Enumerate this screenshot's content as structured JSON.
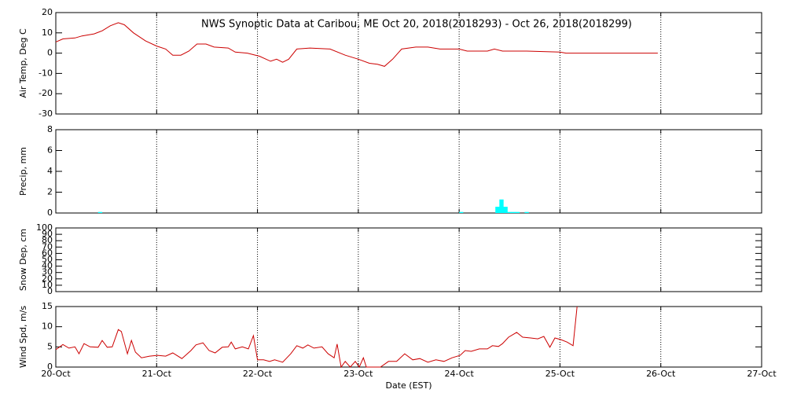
{
  "chart_data": [
    {
      "type": "line",
      "title": "NWS Synoptic Data at Caribou, ME   Oct 20, 2018(2018293) - Oct 26, 2018(2018299)",
      "ylabel": "Air Temp, Deg C",
      "color": "#cc0000",
      "grid": true,
      "x": [
        20.0,
        20.07,
        20.19,
        20.26,
        20.38,
        20.46,
        20.54,
        20.62,
        20.68,
        20.77,
        20.89,
        21.0,
        21.09,
        21.16,
        21.24,
        21.32,
        21.4,
        21.49,
        21.57,
        21.71,
        21.78,
        21.9,
        22.02,
        22.13,
        22.19,
        22.25,
        22.31,
        22.39,
        22.52,
        22.72,
        22.87,
        23.0,
        23.11,
        23.19,
        23.26,
        23.34,
        23.43,
        23.57,
        23.69,
        23.81,
        23.93,
        24.0,
        24.08,
        24.2,
        24.28,
        24.35,
        24.43,
        24.67,
        25.0,
        25.06,
        25.97
      ],
      "values": [
        5.5,
        7,
        7.5,
        8.5,
        9.5,
        11,
        13.5,
        15,
        14,
        10,
        6,
        3.5,
        2,
        -1,
        -1,
        1,
        4.5,
        4.5,
        3,
        2.5,
        0.5,
        0,
        -1.5,
        -4,
        -3,
        -4.5,
        -3,
        2,
        2.5,
        2,
        -1,
        -3,
        -5,
        -5.5,
        -6.5,
        -3,
        2,
        3,
        3,
        2,
        2,
        2,
        1,
        1,
        1,
        2,
        1,
        1,
        0.5,
        0,
        0
      ],
      "xlim": [
        20,
        27
      ],
      "ylim": [
        -30,
        20
      ],
      "yticks": [
        -30,
        -20,
        -10,
        0,
        10,
        20
      ]
    },
    {
      "type": "bar",
      "ylabel": "Precip, mm",
      "color": "#00ffff",
      "grid": true,
      "x": [
        20.44,
        24.02,
        24.38,
        24.42,
        24.46,
        24.5,
        24.54,
        24.58,
        24.67
      ],
      "values": [
        0.1,
        0.1,
        0.6,
        1.3,
        0.6,
        0.1,
        0.1,
        0.1,
        0.1
      ],
      "xlim": [
        20,
        27
      ],
      "ylim": [
        0,
        8
      ],
      "yticks": [
        0,
        2,
        4,
        6,
        8
      ]
    },
    {
      "type": "line",
      "ylabel": "Snow Dep, cm",
      "grid": true,
      "xlim": [
        20,
        27
      ],
      "ylim": [
        0,
        100
      ],
      "yticks": [
        0,
        10,
        20,
        30,
        40,
        50,
        60,
        70,
        80,
        90,
        100
      ]
    },
    {
      "type": "line",
      "ylabel": "Wind Spd, m/s",
      "xlabel": "Date (EST)",
      "color": "#cc0000",
      "grid": true,
      "x": [
        20.0,
        20.07,
        20.13,
        20.19,
        20.23,
        20.28,
        20.34,
        20.42,
        20.46,
        20.51,
        20.56,
        20.62,
        20.65,
        20.71,
        20.75,
        20.79,
        20.85,
        20.93,
        21.01,
        21.09,
        21.16,
        21.25,
        21.34,
        21.39,
        21.46,
        21.52,
        21.58,
        21.65,
        21.71,
        21.74,
        21.78,
        21.85,
        21.91,
        21.96,
        22.0,
        22.06,
        22.12,
        22.17,
        22.25,
        22.33,
        22.39,
        22.45,
        22.5,
        22.56,
        22.64,
        22.7,
        22.76,
        22.79,
        22.83,
        22.87,
        22.92,
        22.97,
        23.01,
        23.05,
        23.08,
        23.22,
        23.3,
        23.38,
        23.46,
        23.54,
        23.61,
        23.69,
        23.77,
        23.85,
        23.93,
        24.01,
        24.06,
        24.12,
        24.2,
        24.28,
        24.33,
        24.39,
        24.43,
        24.49,
        24.57,
        24.63,
        24.71,
        24.78,
        24.84,
        24.9,
        24.95,
        25.01,
        25.07,
        25.13,
        25.17
      ],
      "values": [
        4.3,
        5.6,
        4.7,
        5,
        3.3,
        5.8,
        5,
        4.9,
        6.6,
        4.9,
        5,
        9.3,
        8.8,
        3.3,
        6.6,
        3.7,
        2.3,
        2.7,
        2.9,
        2.7,
        3.5,
        2.1,
        4.1,
        5.5,
        6,
        4.1,
        3.5,
        4.9,
        5,
        6.2,
        4.5,
        5,
        4.5,
        7.8,
        1.8,
        1.8,
        1.4,
        1.8,
        1.2,
        3.3,
        5.3,
        4.7,
        5.5,
        4.7,
        5,
        3.3,
        2.3,
        5.7,
        0,
        1.4,
        0,
        1.4,
        0,
        2.3,
        0,
        0,
        1.4,
        1.4,
        3.3,
        1.8,
        2.1,
        1.2,
        1.8,
        1.4,
        2.3,
        2.9,
        4.1,
        3.9,
        4.5,
        4.5,
        5.3,
        5.1,
        5.8,
        7.4,
        8.6,
        7.4,
        7.2,
        7,
        7.6,
        4.9,
        7.2,
        6.8,
        6.2,
        5.3,
        15
      ],
      "xlim": [
        20,
        27
      ],
      "ylim": [
        0,
        15
      ],
      "yticks": [
        0,
        5,
        10,
        15
      ],
      "xticks": [
        {
          "value": 20,
          "label": "20-Oct"
        },
        {
          "value": 21,
          "label": "21-Oct"
        },
        {
          "value": 22,
          "label": "22-Oct"
        },
        {
          "value": 23,
          "label": "23-Oct"
        },
        {
          "value": 24,
          "label": "24-Oct"
        },
        {
          "value": 25,
          "label": "25-Oct"
        },
        {
          "value": 26,
          "label": "26-Oct"
        },
        {
          "value": 27,
          "label": "27-Oct"
        }
      ]
    }
  ]
}
